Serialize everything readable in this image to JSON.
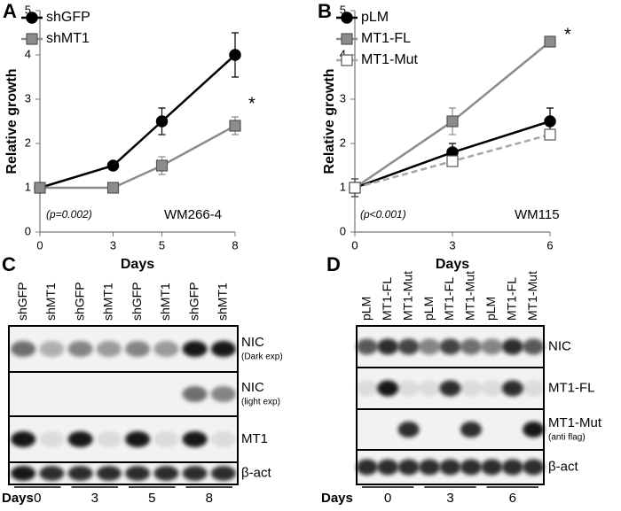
{
  "chart_data": [
    {
      "type": "line",
      "panel": "A",
      "xlabel": "Days",
      "ylabel": "Relative growth",
      "x": [
        0,
        3,
        5,
        8
      ],
      "xlim": [
        0,
        8
      ],
      "xticks": [
        0,
        3,
        5,
        8
      ],
      "ylim": [
        0,
        5
      ],
      "yticks": [
        0,
        1,
        2,
        3,
        4,
        5
      ],
      "legend": "upper left",
      "series": [
        {
          "name": "shGFP",
          "color": "#000000",
          "marker": "circle",
          "marker_fill": "#000000",
          "dashed": false,
          "values": [
            1,
            1.5,
            2.5,
            4
          ],
          "errors": [
            0,
            0,
            0.3,
            0.5
          ]
        },
        {
          "name": "shMT1",
          "color": "#8c8c8c",
          "marker": "square",
          "marker_fill": "#8c8c8c",
          "dashed": false,
          "values": [
            1,
            1,
            1.5,
            2.4
          ],
          "errors": [
            0,
            0,
            0.2,
            0.2
          ]
        }
      ],
      "annotations": [
        "(p=0.002)",
        "WM266-4",
        "*"
      ]
    },
    {
      "type": "line",
      "panel": "B",
      "xlabel": "Days",
      "ylabel": "Relative growth",
      "x": [
        0,
        3,
        6
      ],
      "xlim": [
        0,
        6
      ],
      "xticks": [
        0,
        3,
        6
      ],
      "ylim": [
        0,
        5
      ],
      "yticks": [
        0,
        1,
        2,
        3,
        4,
        5
      ],
      "legend": "upper left",
      "series": [
        {
          "name": "pLM",
          "color": "#000000",
          "marker": "circle",
          "marker_fill": "#000000",
          "dashed": false,
          "values": [
            1,
            1.8,
            2.5
          ],
          "errors": [
            0.2,
            0.2,
            0.3
          ]
        },
        {
          "name": "MT1-FL",
          "color": "#8c8c8c",
          "marker": "square",
          "marker_fill": "#8c8c8c",
          "dashed": false,
          "values": [
            1,
            2.5,
            4.3
          ],
          "errors": [
            0.2,
            0.3,
            0.1
          ]
        },
        {
          "name": "MT1-Mut",
          "color": "#a6a6a6",
          "marker": "square",
          "marker_fill": "#ffffff",
          "dashed": true,
          "values": [
            1,
            1.6,
            2.2
          ],
          "errors": [
            0.2,
            0.1,
            0.1
          ]
        }
      ],
      "annotations": [
        "(p<0.001)",
        "WM115",
        "*"
      ]
    }
  ],
  "blots": [
    {
      "panel": "C",
      "lanes": [
        "shGFP",
        "shMT1",
        "shGFP",
        "shMT1",
        "shGFP",
        "shMT1",
        "shGFP",
        "shMT1"
      ],
      "rows": [
        {
          "label": "NIC",
          "note": "(Dark exp)"
        },
        {
          "label": "NIC",
          "note": "(light exp)"
        },
        {
          "label": "MT1"
        },
        {
          "label": "β-act"
        }
      ],
      "days_label": "Days",
      "days": [
        "0",
        "3",
        "5",
        "8"
      ]
    },
    {
      "panel": "D",
      "lanes": [
        "pLM",
        "MT1-FL",
        "MT1-Mut",
        "pLM",
        "MT1-FL",
        "MT1-Mut",
        "pLM",
        "MT1-FL",
        "MT1-Mut"
      ],
      "rows": [
        {
          "label": "NIC"
        },
        {
          "label": "MT1-FL"
        },
        {
          "label": "MT1-Mut",
          "note": "(anti flag)"
        },
        {
          "label": "β-act"
        }
      ],
      "days_label": "Days",
      "days": [
        "0",
        "3",
        "6"
      ]
    }
  ]
}
